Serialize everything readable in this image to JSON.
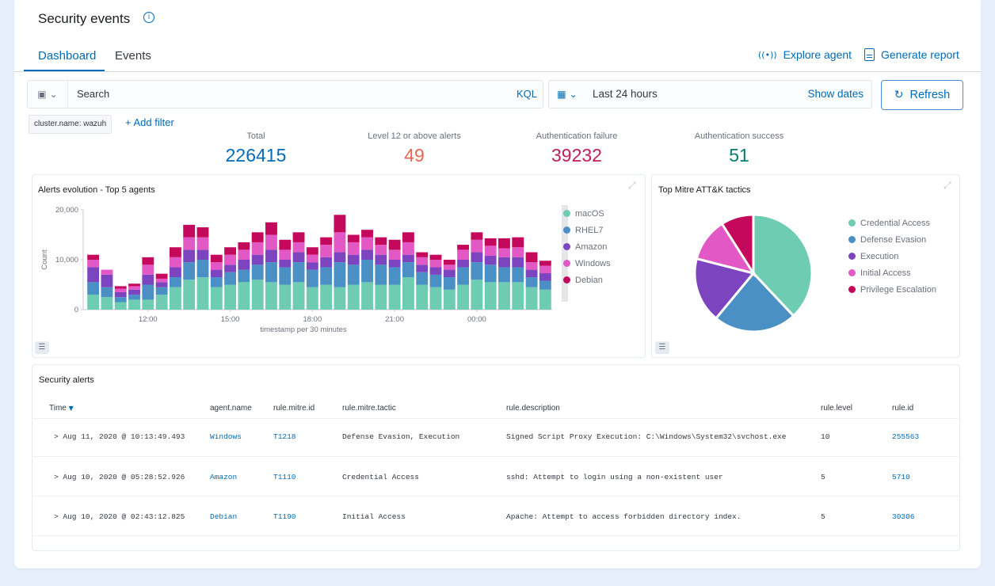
{
  "header": {
    "title": "Security events",
    "tabs": [
      {
        "label": "Dashboard"
      },
      {
        "label": "Events"
      }
    ],
    "explore_agent": "Explore agent",
    "generate_report": "Generate report"
  },
  "search": {
    "placeholder": "Search",
    "kql": "KQL",
    "time_range": "Last 24 hours",
    "show_dates": "Show dates",
    "refresh": "Refresh"
  },
  "filters": {
    "pill": "cluster.name: wazuh",
    "add": "+ Add filter"
  },
  "stats": [
    {
      "label": "Total",
      "value": "226415",
      "color": "#006bb8"
    },
    {
      "label": "Level 12 or above alerts",
      "value": "49",
      "color": "#e7664c"
    },
    {
      "label": "Authentication failure",
      "value": "39232",
      "color": "#bd1e59"
    },
    {
      "label": "Authentication success",
      "value": "51",
      "color": "#017d73"
    }
  ],
  "alerts_chart": {
    "title": "Alerts evolution - Top 5 agents",
    "legend": [
      "macOS",
      "RHEL7",
      "Amazon",
      "Windows",
      "Debian"
    ]
  },
  "mitre_chart": {
    "title": "Top Mitre ATT&K tactics"
  },
  "chart_data": [
    {
      "type": "bar",
      "title": "Alerts evolution - Top 5 agents",
      "xlabel": "timestamp per 30 minutes",
      "ylabel": "Count",
      "ylim": [
        0,
        20000
      ],
      "y_ticks": [
        "0",
        "10,000",
        "20,000"
      ],
      "x_ticks": [
        {
          "label": "12:00",
          "index": 4.5
        },
        {
          "label": "15:00",
          "index": 10.5
        },
        {
          "label": "18:00",
          "index": 16.5
        },
        {
          "label": "21:00",
          "index": 22.5
        },
        {
          "label": "00:00",
          "index": 28.5
        }
      ],
      "stacked": true,
      "colors": [
        "#6dccb1",
        "#4a90c4",
        "#7d44bf",
        "#e258c4",
        "#c4085c"
      ],
      "series": [
        {
          "name": "macOS",
          "values": [
            3000,
            2500,
            1500,
            2000,
            2000,
            3000,
            4500,
            6000,
            6500,
            4500,
            5000,
            5500,
            6000,
            5500,
            5000,
            5500,
            4500,
            5000,
            4500,
            5000,
            5500,
            5000,
            5000,
            6500,
            5000,
            4500,
            4000,
            5000,
            6000,
            5500,
            5500,
            5500,
            4500,
            4000
          ]
        },
        {
          "name": "RHEL7",
          "values": [
            2500,
            2000,
            1000,
            1000,
            3000,
            1500,
            2000,
            3500,
            3500,
            2000,
            2500,
            2500,
            3000,
            4000,
            3500,
            4000,
            3500,
            3500,
            5000,
            4000,
            4500,
            4000,
            3500,
            3000,
            2500,
            2500,
            2500,
            3500,
            3500,
            3500,
            3000,
            3000,
            2000,
            1800
          ]
        },
        {
          "name": "Amazon",
          "values": [
            3000,
            2500,
            1000,
            1000,
            2000,
            1000,
            2000,
            2500,
            2000,
            1500,
            1500,
            2000,
            2000,
            2500,
            1500,
            2000,
            1500,
            2000,
            2000,
            2000,
            2000,
            2000,
            1500,
            1500,
            1500,
            1500,
            1500,
            1500,
            2000,
            1800,
            2000,
            2000,
            1500,
            1500
          ]
        },
        {
          "name": "Windows",
          "values": [
            1500,
            1000,
            700,
            700,
            2000,
            700,
            2000,
            2500,
            2500,
            1500,
            2000,
            2000,
            2500,
            3000,
            2000,
            2000,
            1500,
            2500,
            4000,
            2500,
            2500,
            2000,
            2000,
            2500,
            1500,
            1500,
            1000,
            2000,
            2500,
            2000,
            1800,
            2000,
            1500,
            1500
          ]
        },
        {
          "name": "Debian",
          "values": [
            1000,
            0,
            500,
            500,
            1500,
            1000,
            2000,
            2500,
            2000,
            1500,
            1500,
            1500,
            2000,
            2500,
            2000,
            2000,
            1500,
            1500,
            3500,
            1500,
            1500,
            1500,
            2000,
            2000,
            1000,
            1000,
            1000,
            1000,
            1500,
            1500,
            2000,
            2000,
            2000,
            1000
          ]
        }
      ]
    },
    {
      "type": "pie",
      "title": "Top Mitre ATT&K tactics",
      "slices": [
        {
          "label": "Credential Access",
          "value": 38,
          "color": "#6dccb1"
        },
        {
          "label": "Defense Evasion",
          "value": 23,
          "color": "#4a90c4"
        },
        {
          "label": "Execution",
          "value": 18,
          "color": "#7d44bf"
        },
        {
          "label": "Initial Access",
          "value": 12,
          "color": "#e258c4"
        },
        {
          "label": "Privilege Escalation",
          "value": 9,
          "color": "#c4085c"
        }
      ]
    }
  ],
  "alerts_table": {
    "title": "Security alerts",
    "columns": [
      "Time",
      "agent.name",
      "rule.mitre.id",
      "rule.mitre.tactic",
      "rule.description",
      "rule.level",
      "rule.id"
    ],
    "rows": [
      {
        "time": "Aug 11, 2020 @ 10:13:49.493",
        "agent": "Windows",
        "mitre_id": "T1218",
        "tactic": "Defense Evasion, Execution",
        "description": "Signed Script Proxy Execution: C:\\Windows\\System32\\svchost.exe",
        "level": "10",
        "rule_id": "255563"
      },
      {
        "time": "Aug 10, 2020 @ 05:28:52.926",
        "agent": "Amazon",
        "mitre_id": "T1110",
        "tactic": "Credential Access",
        "description": "sshd: Attempt to login using a non-existent user",
        "level": "5",
        "rule_id": "5710"
      },
      {
        "time": "Aug 10, 2020 @ 02:43:12.825",
        "agent": "Debian",
        "mitre_id": "T1190",
        "tactic": "Initial Access",
        "description": "Apache: Attempt to access forbidden directory index.",
        "level": "5",
        "rule_id": "30306"
      }
    ]
  },
  "icons": {
    "info": "ⓘ",
    "radio_waves": "((•))",
    "save_query": "🖫",
    "calendar": "▦",
    "refresh": "↻",
    "expand": "⤢",
    "legend_toggle": "☰",
    "chevron_right": "›",
    "chevron_down": "⌄"
  }
}
